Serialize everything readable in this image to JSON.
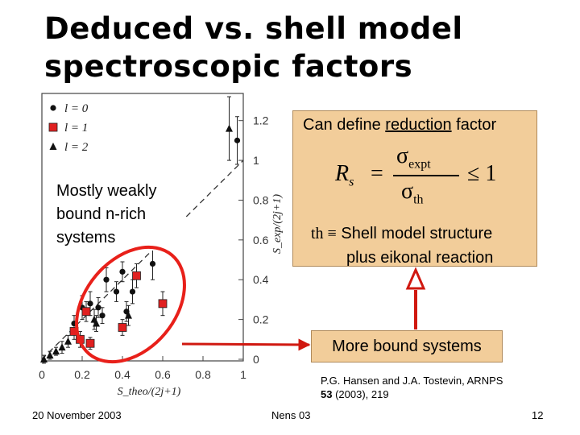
{
  "slide": {
    "title_line1": "Deduced vs. shell model",
    "title_line2": "spectroscopic factors",
    "callout_reduction": {
      "prefix": "Can define ",
      "underlined": "reduction",
      "suffix": " factor",
      "formula": {
        "lhs": "R",
        "lhs_sub": "s",
        "num": "σ",
        "num_sub": "expt",
        "den": "σ",
        "den_sub": "th",
        "rel": "≤ 1"
      },
      "th_symbol": "th ≡",
      "th_line1": "Shell model structure",
      "th_line2": "plus eikonal reaction"
    },
    "callout_weak": {
      "line1": "Mostly weakly",
      "line2": "bound n-rich",
      "line3": "systems"
    },
    "callout_bound": "More bound systems",
    "citation": {
      "line1": "P.G. Hansen and J.A. Tostevin, ARNPS",
      "volume": "53",
      "rest": " (2003), 219"
    },
    "footer": {
      "date": "20 November 2003",
      "center": "Nens 03",
      "page": "12"
    },
    "colors": {
      "callout_fill": "#f2cd9a",
      "ellipse": "#e8201a",
      "arrow": "#d01810",
      "marker_red": "#e02020"
    }
  },
  "chart_data": {
    "type": "scatter",
    "xlabel": "S_theo/(2j+1)",
    "ylabel": "S_exp/(2j+1)",
    "xlim": [
      0,
      1.05
    ],
    "ylim": [
      -0.05,
      1.35
    ],
    "x_ticks": [
      "0",
      "0.2",
      "0.4",
      "0.6",
      "0.8",
      "1"
    ],
    "y_ticks": [
      "0",
      "0.2",
      "0.4",
      "0.6",
      "0.8",
      "1",
      "1.2"
    ],
    "legend": [
      "l = 0",
      "l = 1",
      "l = 2"
    ],
    "legend_position": "top-left",
    "reference_line": "y = x (dashed)",
    "series": [
      {
        "name": "l = 0",
        "marker": "circle",
        "points": [
          {
            "x": 0.97,
            "y": 1.1,
            "err": 0.12
          },
          {
            "x": 0.45,
            "y": 0.34,
            "err": 0.06
          },
          {
            "x": 0.55,
            "y": 0.48,
            "err": 0.08
          },
          {
            "x": 0.16,
            "y": 0.18,
            "err": 0.04
          },
          {
            "x": 0.24,
            "y": 0.28,
            "err": 0.06
          },
          {
            "x": 0.28,
            "y": 0.26,
            "err": 0.05
          },
          {
            "x": 0.3,
            "y": 0.22,
            "err": 0.04
          },
          {
            "x": 0.32,
            "y": 0.4,
            "err": 0.06
          },
          {
            "x": 0.37,
            "y": 0.34,
            "err": 0.05
          },
          {
            "x": 0.4,
            "y": 0.44,
            "err": 0.05
          },
          {
            "x": 0.42,
            "y": 0.24,
            "err": 0.05
          },
          {
            "x": 0.2,
            "y": 0.26,
            "err": 0.06
          }
        ]
      },
      {
        "name": "l = 1",
        "marker": "square",
        "points": [
          {
            "x": 0.47,
            "y": 0.42,
            "err": 0.06
          },
          {
            "x": 0.6,
            "y": 0.28,
            "err": 0.06
          },
          {
            "x": 0.22,
            "y": 0.24,
            "err": 0.05
          },
          {
            "x": 0.16,
            "y": 0.14,
            "err": 0.04
          },
          {
            "x": 0.19,
            "y": 0.1,
            "err": 0.04
          },
          {
            "x": 0.24,
            "y": 0.08,
            "err": 0.03
          },
          {
            "x": 0.4,
            "y": 0.16,
            "err": 0.04
          }
        ]
      },
      {
        "name": "l = 2",
        "marker": "triangle",
        "points": [
          {
            "x": 0.93,
            "y": 1.16,
            "err": 0.16
          },
          {
            "x": 0.01,
            "y": 0.0,
            "err": 0.02
          },
          {
            "x": 0.04,
            "y": 0.02,
            "err": 0.02
          },
          {
            "x": 0.07,
            "y": 0.04,
            "err": 0.02
          },
          {
            "x": 0.1,
            "y": 0.06,
            "err": 0.03
          },
          {
            "x": 0.13,
            "y": 0.09,
            "err": 0.03
          },
          {
            "x": 0.26,
            "y": 0.2,
            "err": 0.05
          },
          {
            "x": 0.27,
            "y": 0.18,
            "err": 0.04
          },
          {
            "x": 0.43,
            "y": 0.22,
            "err": 0.05
          }
        ]
      }
    ]
  }
}
